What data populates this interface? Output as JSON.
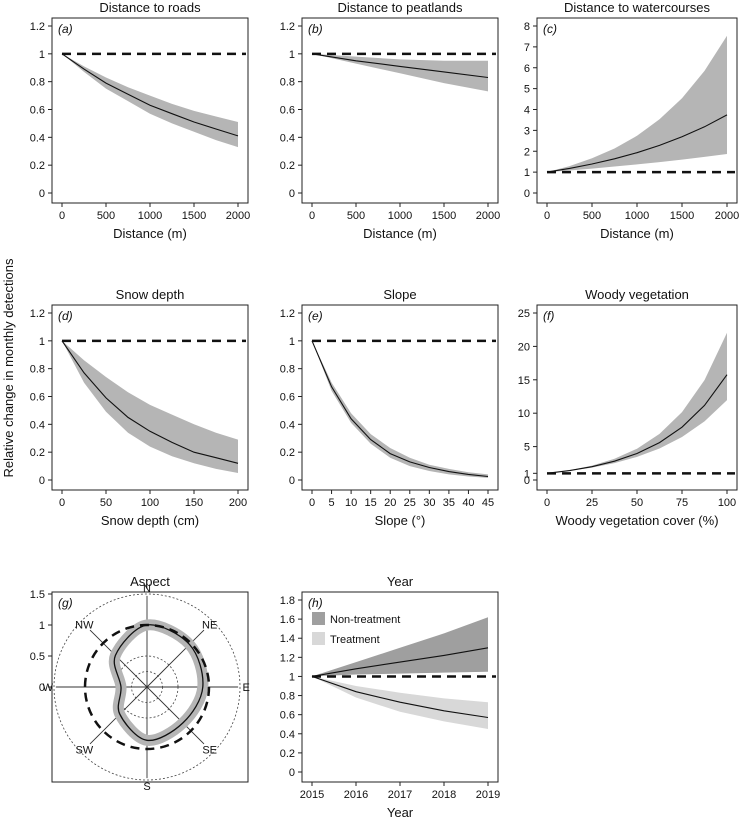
{
  "figure": {
    "ylabel": "Relative change in monthly detections",
    "reference_line": "dashed line at 1 (no change)"
  },
  "chart_data": [
    {
      "id": "a",
      "letter": "a",
      "type": "line",
      "title": "Distance to roads",
      "xlabel": "Distance (m)",
      "ylabel": "",
      "xlim": [
        0,
        2000
      ],
      "ylim": [
        0,
        1.2
      ],
      "ticks_y": [
        0,
        0.2,
        0.4,
        0.6,
        0.8,
        1,
        1.2
      ],
      "ticks_x": [
        0,
        500,
        1000,
        1500,
        2000
      ],
      "ref": 1,
      "series": [
        {
          "x": [
            0,
            250,
            500,
            750,
            1000,
            1250,
            1500,
            1750,
            2000
          ],
          "y": [
            1.0,
            0.89,
            0.79,
            0.71,
            0.63,
            0.57,
            0.51,
            0.46,
            0.41
          ],
          "lower": [
            1.0,
            0.87,
            0.75,
            0.66,
            0.57,
            0.5,
            0.44,
            0.38,
            0.33
          ],
          "upper": [
            1.0,
            0.91,
            0.83,
            0.76,
            0.7,
            0.64,
            0.59,
            0.55,
            0.51
          ],
          "band_color": "#b5b5b5"
        }
      ]
    },
    {
      "id": "b",
      "letter": "b",
      "type": "line",
      "title": "Distance to peatlands",
      "xlabel": "Distance (m)",
      "ylabel": "",
      "xlim": [
        0,
        2000
      ],
      "ylim": [
        0,
        1.2
      ],
      "ticks_y": [
        0,
        0.2,
        0.4,
        0.6,
        0.8,
        1,
        1.2
      ],
      "ticks_x": [
        0,
        500,
        1000,
        1500,
        2000
      ],
      "ref": 1,
      "series": [
        {
          "x": [
            0,
            500,
            1000,
            1500,
            2000
          ],
          "y": [
            1.0,
            0.95,
            0.91,
            0.87,
            0.83
          ],
          "lower": [
            1.0,
            0.93,
            0.86,
            0.79,
            0.73
          ],
          "upper": [
            1.0,
            0.98,
            0.96,
            0.95,
            0.95
          ],
          "band_color": "#b5b5b5"
        }
      ]
    },
    {
      "id": "c",
      "letter": "c",
      "type": "line",
      "title": "Distance to watercourses",
      "xlabel": "Distance (m)",
      "ylabel": "",
      "xlim": [
        0,
        2000
      ],
      "ylim": [
        0,
        8
      ],
      "ticks_y": [
        0,
        1,
        2,
        3,
        4,
        5,
        6,
        7,
        8
      ],
      "ticks_x": [
        0,
        500,
        1000,
        1500,
        2000
      ],
      "ref": 1,
      "series": [
        {
          "x": [
            0,
            250,
            500,
            750,
            1000,
            1250,
            1500,
            1750,
            2000
          ],
          "y": [
            1.0,
            1.18,
            1.39,
            1.64,
            1.93,
            2.28,
            2.69,
            3.17,
            3.74
          ],
          "lower": [
            1.0,
            1.08,
            1.17,
            1.27,
            1.37,
            1.48,
            1.6,
            1.73,
            1.87
          ],
          "upper": [
            1.0,
            1.29,
            1.66,
            2.13,
            2.74,
            3.53,
            4.54,
            5.85,
            7.53
          ],
          "band_color": "#b5b5b5"
        }
      ]
    },
    {
      "id": "d",
      "letter": "d",
      "type": "line",
      "title": "Snow depth",
      "xlabel": "Snow depth (cm)",
      "ylabel": "",
      "xlim": [
        0,
        200
      ],
      "ylim": [
        0,
        1.2
      ],
      "ticks_y": [
        0,
        0.2,
        0.4,
        0.6,
        0.8,
        1,
        1.2
      ],
      "ticks_x": [
        0,
        50,
        100,
        150,
        200
      ],
      "ref": 1,
      "series": [
        {
          "x": [
            0,
            25,
            50,
            75,
            100,
            125,
            150,
            175,
            200
          ],
          "y": [
            1.0,
            0.77,
            0.59,
            0.45,
            0.35,
            0.27,
            0.2,
            0.16,
            0.12
          ],
          "lower": [
            1.0,
            0.7,
            0.49,
            0.34,
            0.24,
            0.17,
            0.12,
            0.08,
            0.05
          ],
          "upper": [
            1.0,
            0.86,
            0.74,
            0.63,
            0.54,
            0.47,
            0.4,
            0.34,
            0.29
          ],
          "band_color": "#b5b5b5"
        }
      ]
    },
    {
      "id": "e",
      "letter": "e",
      "type": "line",
      "title": "Slope",
      "xlabel": "Slope (°)",
      "ylabel": "",
      "xlim": [
        0,
        45
      ],
      "ylim": [
        0,
        1.2
      ],
      "ticks_y": [
        0,
        0.2,
        0.4,
        0.6,
        0.8,
        1,
        1.2
      ],
      "ticks_x": [
        0,
        5,
        10,
        15,
        20,
        25,
        30,
        35,
        40,
        45
      ],
      "ref": 1,
      "series": [
        {
          "x": [
            0,
            5,
            10,
            15,
            20,
            25,
            30,
            35,
            40,
            45
          ],
          "y": [
            1.0,
            0.67,
            0.44,
            0.29,
            0.19,
            0.13,
            0.09,
            0.06,
            0.04,
            0.025
          ],
          "lower": [
            1.0,
            0.64,
            0.41,
            0.26,
            0.16,
            0.1,
            0.065,
            0.04,
            0.025,
            0.015
          ],
          "upper": [
            1.0,
            0.7,
            0.48,
            0.33,
            0.23,
            0.16,
            0.11,
            0.08,
            0.055,
            0.04
          ],
          "band_color": "#b5b5b5"
        }
      ]
    },
    {
      "id": "f",
      "letter": "f",
      "type": "line",
      "title": "Woody vegetation",
      "xlabel": "Woody vegetation cover (%)",
      "ylabel": "",
      "xlim": [
        0,
        100
      ],
      "ylim": [
        0,
        25
      ],
      "ticks_y": [
        0,
        1,
        5,
        10,
        15,
        20,
        25
      ],
      "ticks_x": [
        0,
        25,
        50,
        75,
        100
      ],
      "ref": 1,
      "series": [
        {
          "x": [
            0,
            12.5,
            25,
            37.5,
            50,
            62.5,
            75,
            87.5,
            100
          ],
          "y": [
            1.0,
            1.41,
            1.99,
            2.81,
            3.97,
            5.6,
            7.91,
            11.17,
            15.77
          ],
          "lower": [
            1.0,
            1.36,
            1.86,
            2.53,
            3.46,
            4.71,
            6.43,
            8.77,
            11.96
          ],
          "upper": [
            1.0,
            1.47,
            2.16,
            3.18,
            4.69,
            6.9,
            10.16,
            14.96,
            22.03
          ],
          "band_color": "#b5b5b5"
        }
      ]
    },
    {
      "id": "g",
      "letter": "g",
      "type": "polar",
      "title": "Aspect",
      "xlabel": "",
      "ylabel": "",
      "rlim": 1.5,
      "ticks_y": [
        0,
        0.5,
        1,
        1.5
      ],
      "directions": [
        "N",
        "NE",
        "E",
        "SE",
        "S",
        "SW",
        "W",
        "NW"
      ],
      "ref": 1,
      "series": [
        {
          "angle_deg": [
            0,
            45,
            90,
            135,
            180,
            225,
            270,
            315
          ],
          "r": [
            1.0,
            0.97,
            0.9,
            0.82,
            0.86,
            0.62,
            0.42,
            0.72
          ],
          "band_color": "#b5b5b5"
        }
      ]
    },
    {
      "id": "h",
      "letter": "h",
      "type": "line",
      "title": "Year",
      "xlabel": "Year",
      "ylabel": "",
      "xlim": [
        2015,
        2019
      ],
      "ylim": [
        0,
        1.8
      ],
      "ticks_y": [
        0,
        0.2,
        0.4,
        0.6,
        0.8,
        1,
        1.2,
        1.4,
        1.6,
        1.8
      ],
      "ticks_x": [
        2015,
        2016,
        2017,
        2018,
        2019
      ],
      "ref": 1,
      "legend": [
        {
          "label": "Non-treatment",
          "color": "#9f9f9f"
        },
        {
          "label": "Treatment",
          "color": "#d8d8d8"
        }
      ],
      "series": [
        {
          "name": "Non-treatment",
          "x": [
            2015,
            2016,
            2017,
            2018,
            2019
          ],
          "y": [
            1.0,
            1.08,
            1.15,
            1.22,
            1.3
          ],
          "lower": [
            1.0,
            1.02,
            1.03,
            1.04,
            1.05
          ],
          "upper": [
            1.0,
            1.15,
            1.3,
            1.45,
            1.62
          ],
          "band_color": "#9f9f9f"
        },
        {
          "name": "Treatment",
          "x": [
            2015,
            2016,
            2017,
            2018,
            2019
          ],
          "y": [
            1.0,
            0.84,
            0.73,
            0.64,
            0.57
          ],
          "lower": [
            1.0,
            0.78,
            0.63,
            0.53,
            0.45
          ],
          "upper": [
            1.0,
            0.9,
            0.83,
            0.77,
            0.73
          ],
          "band_color": "#d8d8d8"
        }
      ]
    }
  ]
}
